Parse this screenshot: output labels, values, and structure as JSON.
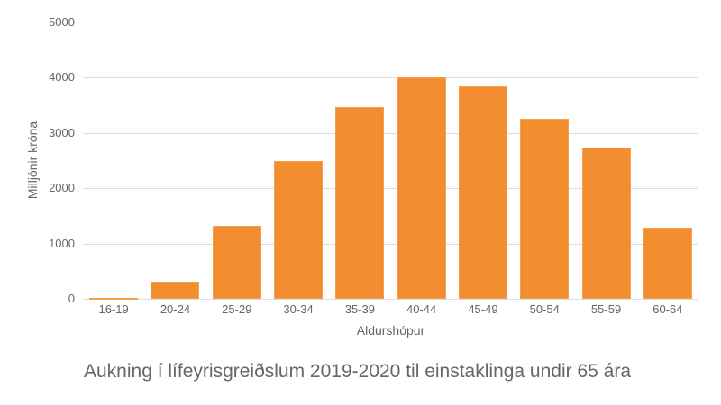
{
  "chart_data": {
    "type": "bar",
    "title": "Aukning í lífeyrisgreiðslum 2019-2020 til einstaklinga undir 65 ára",
    "xlabel": "Aldurshópur",
    "ylabel": "Milljónir króna",
    "categories": [
      "16-19",
      "20-24",
      "25-29",
      "30-34",
      "35-39",
      "40-44",
      "45-49",
      "50-54",
      "55-59",
      "60-64"
    ],
    "values": [
      10,
      310,
      1320,
      2500,
      3470,
      4000,
      3850,
      3250,
      2740,
      1280
    ],
    "ylim": [
      0,
      5000
    ],
    "yticks": [
      "0",
      "1000",
      "2000",
      "3000",
      "4000",
      "5000"
    ],
    "grid": true,
    "legend": "none",
    "bar_color": "#f28e2f"
  }
}
